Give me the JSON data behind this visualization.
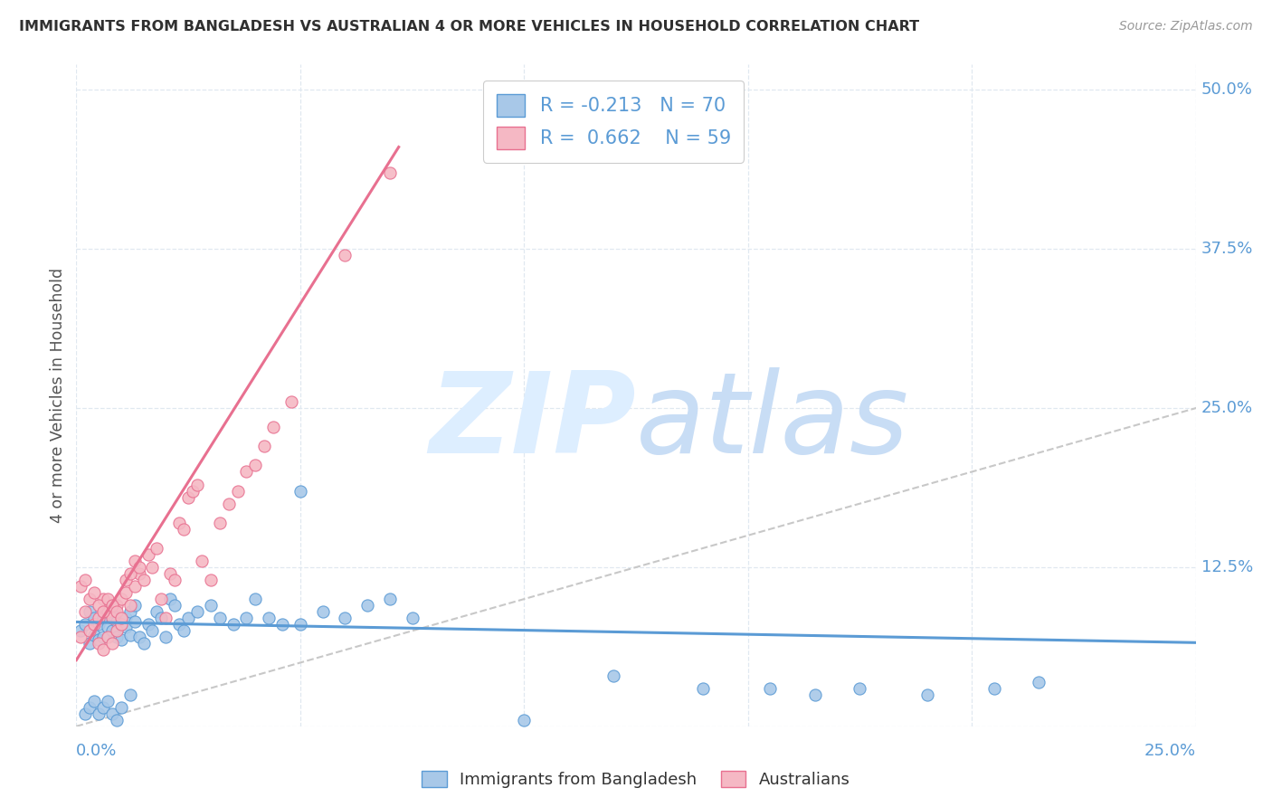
{
  "title": "IMMIGRANTS FROM BANGLADESH VS AUSTRALIAN 4 OR MORE VEHICLES IN HOUSEHOLD CORRELATION CHART",
  "source": "Source: ZipAtlas.com",
  "ylabel": "4 or more Vehicles in Household",
  "xlim": [
    0.0,
    0.25
  ],
  "ylim": [
    0.0,
    0.52
  ],
  "R_blue": -0.213,
  "N_blue": 70,
  "R_pink": 0.662,
  "N_pink": 59,
  "blue_face": "#a8c8e8",
  "blue_edge": "#5b9bd5",
  "pink_face": "#f5b8c4",
  "pink_edge": "#e87090",
  "blue_line": "#5b9bd5",
  "pink_line": "#e87090",
  "dash_color": "#c8c8c8",
  "bg_color": "#ffffff",
  "grid_color": "#e0e8f0",
  "title_color": "#303030",
  "right_label_color": "#5b9bd5",
  "bottom_label_color": "#5b9bd5",
  "watermark_color": "#ddeeff",
  "legend_blue_label": "Immigrants from Bangladesh",
  "legend_pink_label": "Australians",
  "yticks": [
    0.0,
    0.125,
    0.25,
    0.375,
    0.5
  ],
  "ytick_labels": [
    "",
    "12.5%",
    "25.0%",
    "37.5%",
    "50.0%"
  ],
  "xtick_labels": [
    "0.0%",
    "25.0%"
  ],
  "blue_x": [
    0.001,
    0.002,
    0.003,
    0.003,
    0.004,
    0.004,
    0.005,
    0.005,
    0.006,
    0.006,
    0.007,
    0.007,
    0.008,
    0.008,
    0.009,
    0.009,
    0.01,
    0.01,
    0.011,
    0.011,
    0.012,
    0.012,
    0.013,
    0.013,
    0.014,
    0.015,
    0.016,
    0.017,
    0.018,
    0.019,
    0.02,
    0.021,
    0.022,
    0.023,
    0.024,
    0.025,
    0.027,
    0.03,
    0.032,
    0.035,
    0.038,
    0.04,
    0.043,
    0.046,
    0.05,
    0.055,
    0.06,
    0.065,
    0.07,
    0.075,
    0.002,
    0.003,
    0.004,
    0.005,
    0.006,
    0.007,
    0.008,
    0.009,
    0.01,
    0.012,
    0.05,
    0.1,
    0.12,
    0.14,
    0.155,
    0.165,
    0.175,
    0.19,
    0.205,
    0.215
  ],
  "blue_y": [
    0.075,
    0.08,
    0.09,
    0.065,
    0.072,
    0.085,
    0.08,
    0.068,
    0.085,
    0.07,
    0.09,
    0.078,
    0.075,
    0.088,
    0.07,
    0.082,
    0.08,
    0.068,
    0.085,
    0.078,
    0.09,
    0.072,
    0.095,
    0.082,
    0.07,
    0.065,
    0.08,
    0.075,
    0.09,
    0.085,
    0.07,
    0.1,
    0.095,
    0.08,
    0.075,
    0.085,
    0.09,
    0.095,
    0.085,
    0.08,
    0.085,
    0.1,
    0.085,
    0.08,
    0.08,
    0.09,
    0.085,
    0.095,
    0.1,
    0.085,
    0.01,
    0.015,
    0.02,
    0.01,
    0.015,
    0.02,
    0.01,
    0.005,
    0.015,
    0.025,
    0.185,
    0.005,
    0.04,
    0.03,
    0.03,
    0.025,
    0.03,
    0.025,
    0.03,
    0.035
  ],
  "pink_x": [
    0.001,
    0.002,
    0.003,
    0.004,
    0.005,
    0.005,
    0.006,
    0.006,
    0.007,
    0.007,
    0.008,
    0.008,
    0.009,
    0.009,
    0.01,
    0.01,
    0.011,
    0.012,
    0.013,
    0.014,
    0.001,
    0.002,
    0.003,
    0.004,
    0.005,
    0.006,
    0.007,
    0.008,
    0.009,
    0.01,
    0.011,
    0.012,
    0.013,
    0.014,
    0.015,
    0.016,
    0.017,
    0.018,
    0.019,
    0.02,
    0.021,
    0.022,
    0.023,
    0.024,
    0.025,
    0.026,
    0.027,
    0.028,
    0.03,
    0.032,
    0.034,
    0.036,
    0.038,
    0.04,
    0.042,
    0.044,
    0.048,
    0.06,
    0.07
  ],
  "pink_y": [
    0.07,
    0.09,
    0.075,
    0.08,
    0.085,
    0.065,
    0.1,
    0.06,
    0.09,
    0.07,
    0.085,
    0.065,
    0.095,
    0.075,
    0.1,
    0.08,
    0.105,
    0.095,
    0.11,
    0.12,
    0.11,
    0.115,
    0.1,
    0.105,
    0.095,
    0.09,
    0.1,
    0.095,
    0.09,
    0.085,
    0.115,
    0.12,
    0.13,
    0.125,
    0.115,
    0.135,
    0.125,
    0.14,
    0.1,
    0.085,
    0.12,
    0.115,
    0.16,
    0.155,
    0.18,
    0.185,
    0.19,
    0.13,
    0.115,
    0.16,
    0.175,
    0.185,
    0.2,
    0.205,
    0.22,
    0.235,
    0.255,
    0.37,
    0.435
  ],
  "blue_line_x": [
    0.0,
    0.25
  ],
  "blue_line_y_intercept": 0.082,
  "blue_line_slope": -0.065,
  "pink_line_x": [
    0.0,
    0.072
  ],
  "pink_line_y_intercept": 0.052,
  "pink_line_slope": 5.6
}
